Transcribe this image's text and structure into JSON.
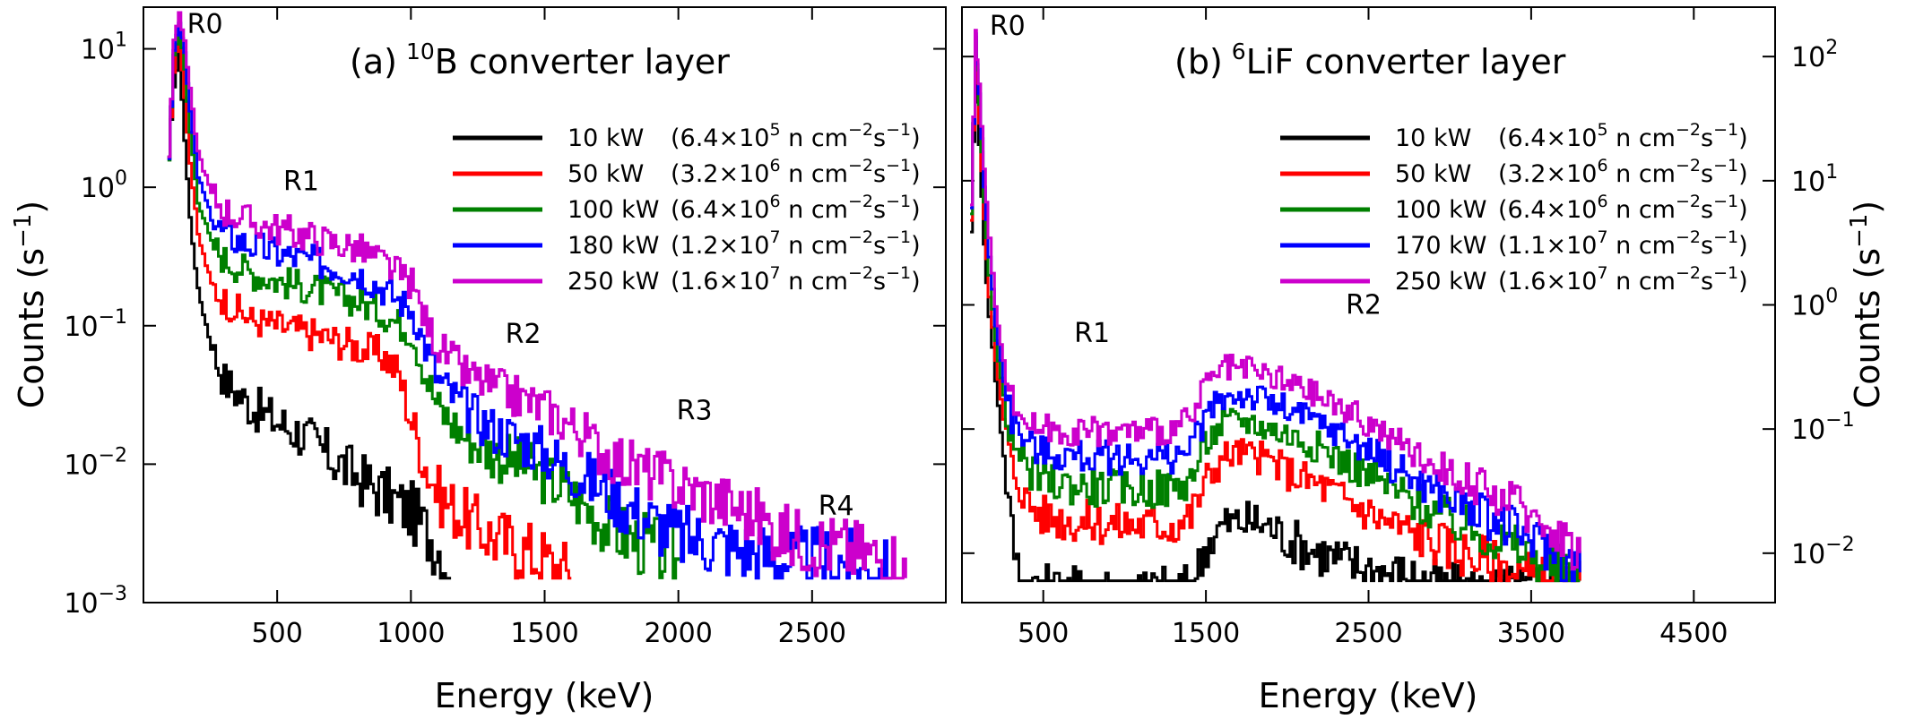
{
  "chart_data": [
    {
      "type": "line",
      "panel_label": "(a)",
      "title_sup": "10",
      "title_rest": "B converter layer",
      "xlabel": "Energy (keV)",
      "ylabel_main": "Counts (s",
      "ylabel_sup": "−1",
      "ylabel_close": ")",
      "yscale": "log",
      "xlim": [
        0,
        3000
      ],
      "ylim": [
        0.001,
        20
      ],
      "xticks": [
        500,
        1000,
        1500,
        2000,
        2500
      ],
      "yticks": [
        {
          "value": 0.001,
          "base": "10",
          "exp": "−3"
        },
        {
          "value": 0.01,
          "base": "10",
          "exp": "−2"
        },
        {
          "value": 0.1,
          "base": "10",
          "exp": "−1"
        },
        {
          "value": 1,
          "base": "10",
          "exp": "0"
        },
        {
          "value": 10,
          "base": "10",
          "exp": "1"
        }
      ],
      "annotations": [
        {
          "text": "R0",
          "x": 230,
          "y": 13
        },
        {
          "text": "R1",
          "x": 590,
          "y": 0.95
        },
        {
          "text": "R2",
          "x": 1420,
          "y": 0.075
        },
        {
          "text": "R3",
          "x": 2060,
          "y": 0.021
        },
        {
          "text": "R4",
          "x": 2590,
          "y": 0.0043
        }
      ],
      "series": [
        {
          "name": "10 kW",
          "flux_mant": "(6.4×10",
          "flux_exp": "5",
          "flux_unit": " n cm",
          "flux_e2": "−2",
          "flux_s": "s",
          "flux_e3": "−1",
          "flux_close": ")",
          "color": "#000000",
          "x": [
            90,
            110,
            130,
            150,
            170,
            200,
            250,
            300,
            400,
            500,
            600,
            700,
            800,
            900,
            1000,
            1100,
            1150
          ],
          "y": [
            1.6,
            5.5,
            9.0,
            2.2,
            0.6,
            0.18,
            0.07,
            0.04,
            0.026,
            0.02,
            0.016,
            0.011,
            0.008,
            0.006,
            0.0045,
            0.0025,
            0.0015
          ]
        },
        {
          "name": "50 kW",
          "flux_mant": "(3.2×10",
          "flux_exp": "6",
          "flux_unit": " n cm",
          "flux_e2": "−2",
          "flux_s": "s",
          "flux_e3": "−1",
          "flux_close": ")",
          "color": "#ff0000",
          "x": [
            90,
            110,
            130,
            150,
            170,
            200,
            250,
            300,
            400,
            500,
            600,
            700,
            800,
            900,
            950,
            1000,
            1050,
            1100,
            1200,
            1300,
            1400,
            1500,
            1600
          ],
          "y": [
            1.6,
            7.0,
            12.0,
            4.5,
            1.5,
            0.45,
            0.2,
            0.15,
            0.11,
            0.1,
            0.09,
            0.08,
            0.07,
            0.06,
            0.045,
            0.02,
            0.01,
            0.006,
            0.004,
            0.003,
            0.0025,
            0.002,
            0.0015
          ]
        },
        {
          "name": "100 kW",
          "flux_mant": "(6.4×10",
          "flux_exp": "6",
          "flux_unit": " n cm",
          "flux_e2": "−2",
          "flux_s": "s",
          "flux_e3": "−1",
          "flux_close": ")",
          "color": "#008000",
          "x": [
            90,
            110,
            130,
            150,
            170,
            200,
            250,
            300,
            400,
            500,
            600,
            700,
            800,
            900,
            1000,
            1050,
            1100,
            1200,
            1300,
            1400,
            1500,
            1600,
            1700,
            1800,
            2000
          ],
          "y": [
            1.6,
            9.0,
            14.0,
            7.0,
            2.5,
            0.8,
            0.4,
            0.3,
            0.24,
            0.21,
            0.19,
            0.17,
            0.15,
            0.12,
            0.09,
            0.045,
            0.025,
            0.016,
            0.012,
            0.01,
            0.008,
            0.006,
            0.004,
            0.003,
            0.002
          ]
        },
        {
          "name": "180 kW",
          "flux_mant": "(1.2×10",
          "flux_exp": "7",
          "flux_unit": " n cm",
          "flux_e2": "−2",
          "flux_s": "s",
          "flux_e3": "−1",
          "flux_close": ")",
          "color": "#0000ff",
          "x": [
            90,
            110,
            130,
            150,
            170,
            200,
            250,
            300,
            400,
            500,
            600,
            700,
            800,
            900,
            1000,
            1050,
            1100,
            1200,
            1300,
            1400,
            1500,
            1600,
            1700,
            1800,
            2000,
            2200,
            2400,
            2600,
            2800
          ],
          "y": [
            1.6,
            10.0,
            16.0,
            9.0,
            3.5,
            1.2,
            0.6,
            0.45,
            0.38,
            0.33,
            0.3,
            0.27,
            0.24,
            0.18,
            0.13,
            0.07,
            0.04,
            0.025,
            0.018,
            0.015,
            0.012,
            0.009,
            0.007,
            0.005,
            0.003,
            0.0025,
            0.002,
            0.002,
            0.0015
          ]
        },
        {
          "name": "250 kW",
          "flux_mant": "(1.6×10",
          "flux_exp": "7",
          "flux_unit": " n cm",
          "flux_e2": "−2",
          "flux_s": "s",
          "flux_e3": "−1",
          "flux_close": ")",
          "color": "#cc00cc",
          "x": [
            90,
            110,
            130,
            150,
            170,
            200,
            250,
            300,
            400,
            500,
            600,
            700,
            800,
            900,
            1000,
            1050,
            1100,
            1200,
            1300,
            1400,
            1500,
            1600,
            1700,
            1800,
            2000,
            2200,
            2300,
            2400,
            2600,
            2800,
            2850
          ],
          "y": [
            1.6,
            12.0,
            18.0,
            11.0,
            5.0,
            1.8,
            0.9,
            0.68,
            0.56,
            0.5,
            0.45,
            0.4,
            0.36,
            0.28,
            0.2,
            0.11,
            0.07,
            0.045,
            0.036,
            0.03,
            0.025,
            0.019,
            0.013,
            0.01,
            0.007,
            0.005,
            0.004,
            0.003,
            0.0025,
            0.002,
            0.0015
          ]
        }
      ]
    },
    {
      "type": "line",
      "panel_label": "(b)",
      "title_sup": "6",
      "title_rest": "LiF converter layer",
      "xlabel": "Energy (keV)",
      "ylabel_main": "Counts (s",
      "ylabel_sup": "−1",
      "ylabel_close": ")",
      "yscale": "log",
      "yaxis_side": "right",
      "xlim": [
        0,
        5000
      ],
      "ylim": [
        0.004,
        250
      ],
      "xticks": [
        500,
        1500,
        2500,
        3500,
        4500
      ],
      "yticks": [
        {
          "value": 0.01,
          "base": "10",
          "exp": "−2"
        },
        {
          "value": 0.1,
          "base": "10",
          "exp": "−1"
        },
        {
          "value": 1,
          "base": "10",
          "exp": "0"
        },
        {
          "value": 10,
          "base": "10",
          "exp": "1"
        },
        {
          "value": 100,
          "base": "10",
          "exp": "2"
        }
      ],
      "annotations": [
        {
          "text": "R0",
          "x": 280,
          "y": 150
        },
        {
          "text": "R1",
          "x": 800,
          "y": 0.5
        },
        {
          "text": "R2",
          "x": 2470,
          "y": 0.85
        }
      ],
      "series": [
        {
          "name": "10 kW",
          "flux_mant": "(6.4×10",
          "flux_exp": "5",
          "flux_unit": " n cm",
          "flux_e2": "−2",
          "flux_s": "s",
          "flux_e3": "−1",
          "flux_close": ")",
          "color": "#000000",
          "x": [
            50,
            80,
            100,
            130,
            160,
            200,
            250,
            300,
            350,
            500,
            1000,
            1400,
            1500,
            1600,
            1700,
            1800,
            1900,
            2000,
            2200,
            2400,
            2600,
            2800,
            3000,
            3200,
            3400,
            3600,
            3800
          ],
          "y": [
            4.0,
            100,
            20,
            3.0,
            0.8,
            0.25,
            0.06,
            0.015,
            0.006,
            0.005,
            0.005,
            0.005,
            0.012,
            0.017,
            0.018,
            0.018,
            0.016,
            0.013,
            0.01,
            0.008,
            0.007,
            0.006,
            0.005,
            0.005,
            0.005,
            0.005,
            0.005
          ]
        },
        {
          "name": "50 kW",
          "flux_mant": "(3.2×10",
          "flux_exp": "6",
          "flux_unit": " n cm",
          "flux_e2": "−2",
          "flux_s": "s",
          "flux_e3": "−1",
          "flux_close": ")",
          "color": "#ff0000",
          "x": [
            50,
            80,
            100,
            130,
            160,
            200,
            250,
            300,
            400,
            500,
            700,
            1000,
            1300,
            1400,
            1500,
            1600,
            1700,
            1800,
            1900,
            2000,
            2200,
            2400,
            2600,
            2800,
            3000,
            3200,
            3400,
            3600,
            3800
          ],
          "y": [
            5.0,
            130,
            30,
            5.0,
            1.2,
            0.35,
            0.12,
            0.05,
            0.025,
            0.02,
            0.018,
            0.017,
            0.017,
            0.02,
            0.04,
            0.06,
            0.065,
            0.06,
            0.055,
            0.045,
            0.035,
            0.025,
            0.018,
            0.014,
            0.011,
            0.009,
            0.007,
            0.006,
            0.005
          ]
        },
        {
          "name": "100 kW",
          "flux_mant": "(6.4×10",
          "flux_exp": "6",
          "flux_unit": " n cm",
          "flux_e2": "−2",
          "flux_s": "s",
          "flux_e3": "−1",
          "flux_close": ")",
          "color": "#008000",
          "x": [
            50,
            80,
            100,
            130,
            160,
            200,
            250,
            300,
            400,
            500,
            700,
            1000,
            1300,
            1400,
            1500,
            1600,
            1700,
            1800,
            1900,
            2000,
            2200,
            2400,
            2600,
            2800,
            3000,
            3200,
            3400,
            3600,
            3800
          ],
          "y": [
            5.5,
            140,
            40,
            7.0,
            1.8,
            0.5,
            0.18,
            0.08,
            0.045,
            0.038,
            0.035,
            0.033,
            0.033,
            0.04,
            0.08,
            0.11,
            0.12,
            0.11,
            0.1,
            0.09,
            0.07,
            0.05,
            0.035,
            0.025,
            0.018,
            0.014,
            0.011,
            0.008,
            0.006
          ]
        },
        {
          "name": "170 kW",
          "flux_mant": "(1.1×10",
          "flux_exp": "7",
          "flux_unit": " n cm",
          "flux_e2": "−2",
          "flux_s": "s",
          "flux_e3": "−1",
          "flux_close": ")",
          "color": "#0000ff",
          "x": [
            50,
            80,
            100,
            130,
            160,
            200,
            250,
            300,
            400,
            500,
            700,
            1000,
            1300,
            1400,
            1500,
            1600,
            1700,
            1800,
            1900,
            2000,
            2200,
            2400,
            2600,
            2800,
            3000,
            3200,
            3400,
            3600,
            3800
          ],
          "y": [
            6.0,
            150,
            50,
            9.0,
            2.5,
            0.7,
            0.25,
            0.12,
            0.075,
            0.065,
            0.06,
            0.058,
            0.06,
            0.07,
            0.13,
            0.18,
            0.19,
            0.18,
            0.16,
            0.14,
            0.11,
            0.08,
            0.055,
            0.038,
            0.027,
            0.02,
            0.015,
            0.011,
            0.007
          ]
        },
        {
          "name": "250 kW",
          "flux_mant": "(1.6×10",
          "flux_exp": "7",
          "flux_unit": " n cm",
          "flux_e2": "−2",
          "flux_s": "s",
          "flux_e3": "−1",
          "flux_close": ")",
          "color": "#cc00cc",
          "x": [
            50,
            80,
            100,
            130,
            160,
            200,
            250,
            300,
            400,
            500,
            700,
            1000,
            1300,
            1400,
            1500,
            1600,
            1700,
            1800,
            1900,
            2000,
            2200,
            2400,
            2600,
            2800,
            3000,
            3200,
            3400,
            3600,
            3800
          ],
          "y": [
            6.5,
            160,
            60,
            12.0,
            3.5,
            1.0,
            0.35,
            0.17,
            0.11,
            0.1,
            0.095,
            0.095,
            0.1,
            0.12,
            0.23,
            0.3,
            0.3,
            0.28,
            0.26,
            0.23,
            0.18,
            0.13,
            0.09,
            0.06,
            0.045,
            0.033,
            0.025,
            0.017,
            0.01
          ]
        }
      ]
    }
  ]
}
